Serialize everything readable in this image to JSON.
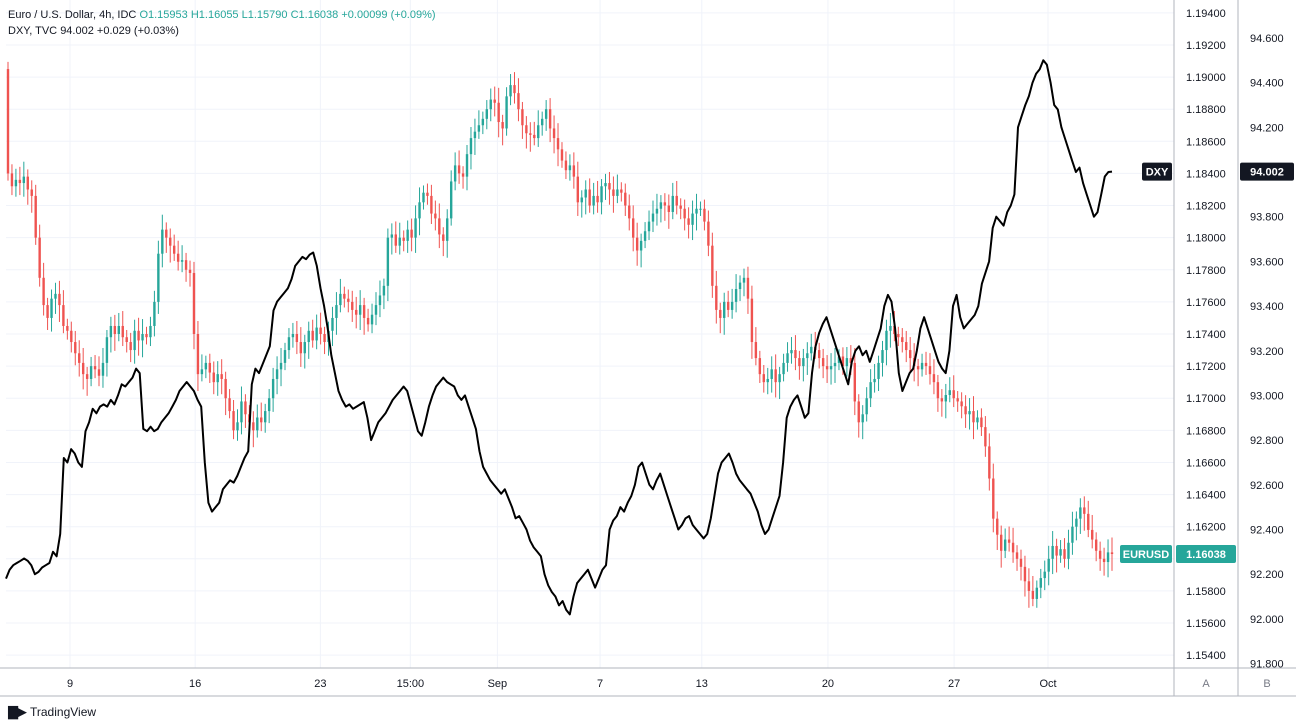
{
  "legend": {
    "eur_symbol": "Euro / U.S. Dollar, 4h, IDC",
    "eur_o": "O1.15953",
    "eur_h": "H1.16055",
    "eur_l": "L1.15790",
    "eur_c": "C1.16038",
    "eur_change": "+0.00099 (+0.09%)",
    "dxy_symbol": "DXY, TVC",
    "dxy_value": "94.002",
    "dxy_change": "+0.029 (+0.03%)"
  },
  "colors": {
    "up": "#26a69a",
    "down": "#ef5350",
    "dxy_line": "#000000",
    "grid": "#f0f3fa",
    "axis_text": "#131722"
  },
  "footer": {
    "brand": "TradingView",
    "logo_icon": "tradingview-logo-icon"
  },
  "scale_buttons": {
    "a": "A",
    "b": "B"
  },
  "chart_data": {
    "type": "line",
    "x_ticks": [
      "9",
      "16",
      "23",
      "15:00",
      "Sep",
      "7",
      "13",
      "20",
      "27",
      "Oct"
    ],
    "y_right_a_ticks": [
      "1.19400",
      "1.19200",
      "1.19000",
      "1.18800",
      "1.18600",
      "1.18400",
      "1.18200",
      "1.18000",
      "1.17800",
      "1.17600",
      "1.17400",
      "1.17200",
      "1.17000",
      "1.16800",
      "1.16600",
      "1.16400",
      "1.16200",
      "1.16000",
      "1.15800",
      "1.15600",
      "1.15400"
    ],
    "y_right_b_ticks": [
      "94.600",
      "94.400",
      "94.200",
      "94.000",
      "93.800",
      "93.600",
      "93.400",
      "93.200",
      "93.000",
      "92.800",
      "92.600",
      "92.400",
      "92.200",
      "92.000",
      "91.800"
    ],
    "eurusd_range": [
      1.1532,
      1.1948
    ],
    "dxy_range": [
      91.78,
      94.77
    ],
    "labels": {
      "dxy_tag": "DXY",
      "dxy_price": "94.002",
      "eurusd_tag": "EURUSD",
      "eurusd_price": "1.16038"
    },
    "series": [
      {
        "name": "EURUSD",
        "kind": "candlestick",
        "closes": [
          1.184,
          1.1832,
          1.1836,
          1.1834,
          1.1838,
          1.183,
          1.1826,
          1.18,
          1.1775,
          1.1758,
          1.175,
          1.1762,
          1.1765,
          1.1758,
          1.1745,
          1.1742,
          1.1735,
          1.1728,
          1.1722,
          1.1715,
          1.1712,
          1.172,
          1.1718,
          1.1714,
          1.1722,
          1.1738,
          1.1745,
          1.174,
          1.1745,
          1.1738,
          1.1735,
          1.173,
          1.1742,
          1.1736,
          1.174,
          1.1738,
          1.1745,
          1.176,
          1.179,
          1.1805,
          1.18,
          1.1795,
          1.179,
          1.1785,
          1.1786,
          1.178,
          1.1778,
          1.174,
          1.1715,
          1.1718,
          1.1722,
          1.1716,
          1.171,
          1.1715,
          1.1712,
          1.17,
          1.1692,
          1.168,
          1.1685,
          1.1698,
          1.169,
          1.1685,
          1.168,
          1.1688,
          1.1685,
          1.1692,
          1.17,
          1.1712,
          1.1718,
          1.1722,
          1.173,
          1.1738,
          1.174,
          1.1735,
          1.1728,
          1.1735,
          1.1742,
          1.1736,
          1.1744,
          1.174,
          1.1735,
          1.1742,
          1.175,
          1.1758,
          1.1765,
          1.1762,
          1.176,
          1.1755,
          1.1752,
          1.1758,
          1.175,
          1.1746,
          1.1752,
          1.1758,
          1.1764,
          1.177,
          1.18,
          1.1802,
          1.1795,
          1.18,
          1.1798,
          1.1805,
          1.18,
          1.1812,
          1.1822,
          1.1828,
          1.1826,
          1.1815,
          1.1812,
          1.1802,
          1.1798,
          1.1812,
          1.1835,
          1.1845,
          1.184,
          1.1838,
          1.1852,
          1.1862,
          1.1866,
          1.187,
          1.1874,
          1.188,
          1.1886,
          1.1884,
          1.1872,
          1.1868,
          1.1888,
          1.1895,
          1.189,
          1.188,
          1.187,
          1.1865,
          1.1864,
          1.1862,
          1.187,
          1.1874,
          1.188,
          1.1868,
          1.1862,
          1.1855,
          1.1848,
          1.1842,
          1.1845,
          1.1838,
          1.1822,
          1.1825,
          1.183,
          1.182,
          1.1826,
          1.1822,
          1.1832,
          1.1834,
          1.183,
          1.1826,
          1.183,
          1.1828,
          1.182,
          1.1812,
          1.18,
          1.1792,
          1.1798,
          1.1804,
          1.181,
          1.1815,
          1.1818,
          1.1822,
          1.182,
          1.1816,
          1.1826,
          1.182,
          1.1818,
          1.1812,
          1.1808,
          1.1815,
          1.1818,
          1.1818,
          1.181,
          1.1795,
          1.177,
          1.1755,
          1.175,
          1.176,
          1.1755,
          1.176,
          1.1768,
          1.1772,
          1.1775,
          1.1762,
          1.1735,
          1.1725,
          1.1715,
          1.171,
          1.1712,
          1.1718,
          1.171,
          1.1715,
          1.1722,
          1.1728,
          1.173,
          1.1725,
          1.172,
          1.1725,
          1.1728,
          1.1732,
          1.173,
          1.1725,
          1.172,
          1.1718,
          1.172,
          1.1722,
          1.1726,
          1.172,
          1.1725,
          1.1722,
          1.1698,
          1.1685,
          1.169,
          1.17,
          1.171,
          1.1712,
          1.1722,
          1.173,
          1.1742,
          1.1745,
          1.174,
          1.1738,
          1.1735,
          1.173,
          1.1725,
          1.172,
          1.1718,
          1.1722,
          1.172,
          1.1715,
          1.171,
          1.17,
          1.1698,
          1.1702,
          1.1705,
          1.17,
          1.1698,
          1.1695,
          1.169,
          1.1692,
          1.1685,
          1.1688,
          1.1682,
          1.167,
          1.165,
          1.1625,
          1.1615,
          1.1605,
          1.1612,
          1.161,
          1.1604,
          1.16,
          1.1595,
          1.1586,
          1.158,
          1.1575,
          1.1582,
          1.1588,
          1.1592,
          1.16,
          1.1608,
          1.1602,
          1.1606,
          1.16,
          1.161,
          1.162,
          1.1625,
          1.1632,
          1.1628,
          1.1618,
          1.1612,
          1.1605,
          1.16,
          1.1598,
          1.1604,
          1.1603
        ]
      },
      {
        "name": "DXY",
        "kind": "line",
        "values": [
          92.18,
          92.22,
          92.24,
          92.25,
          92.26,
          92.27,
          92.26,
          92.24,
          92.2,
          92.21,
          92.23,
          92.24,
          92.25,
          92.3,
          92.28,
          92.38,
          92.72,
          92.7,
          92.76,
          92.74,
          92.7,
          92.68,
          92.84,
          92.88,
          92.94,
          92.92,
          92.95,
          92.96,
          92.95,
          92.98,
          92.96,
          93.0,
          93.05,
          93.04,
          93.06,
          93.08,
          93.12,
          93.1,
          92.85,
          92.84,
          92.86,
          92.84,
          92.85,
          92.88,
          92.9,
          92.92,
          92.95,
          92.98,
          93.02,
          93.04,
          93.06,
          93.04,
          93.02,
          92.98,
          92.95,
          92.7,
          92.52,
          92.48,
          92.5,
          92.52,
          92.58,
          92.6,
          92.62,
          92.61,
          92.64,
          92.68,
          92.72,
          92.75,
          93.05,
          93.12,
          93.1,
          93.14,
          93.18,
          93.22,
          93.38,
          93.42,
          93.44,
          93.46,
          93.48,
          93.52,
          93.58,
          93.6,
          93.62,
          93.61,
          93.63,
          93.64,
          93.58,
          93.48,
          93.4,
          93.3,
          93.18,
          93.1,
          93.02,
          92.98,
          92.95,
          92.96,
          92.94,
          92.95,
          92.96,
          92.97,
          92.9,
          92.8,
          92.84,
          92.88,
          92.9,
          92.92,
          92.95,
          92.98,
          93.0,
          93.02,
          93.04,
          93.02,
          92.96,
          92.9,
          92.84,
          92.82,
          92.88,
          92.95,
          93.0,
          93.04,
          93.06,
          93.08,
          93.06,
          93.05,
          93.04,
          93.0,
          92.98,
          93.0,
          92.95,
          92.9,
          92.85,
          92.75,
          92.68,
          92.65,
          92.62,
          92.6,
          92.58,
          92.56,
          92.58,
          92.54,
          92.5,
          92.45,
          92.46,
          92.43,
          92.4,
          92.35,
          92.32,
          92.3,
          92.28,
          92.2,
          92.15,
          92.12,
          92.1,
          92.06,
          92.08,
          92.04,
          92.02,
          92.1,
          92.16,
          92.18,
          92.2,
          92.22,
          92.18,
          92.14,
          92.18,
          92.22,
          92.24,
          92.4,
          92.44,
          92.46,
          92.5,
          92.48,
          92.52,
          92.55,
          92.6,
          92.68,
          92.7,
          92.65,
          92.6,
          92.58,
          92.62,
          92.65,
          92.6,
          92.55,
          92.5,
          92.45,
          92.4,
          92.42,
          92.45,
          92.46,
          92.42,
          92.4,
          92.38,
          92.36,
          92.38,
          92.45,
          92.55,
          92.65,
          92.7,
          92.72,
          92.74,
          92.7,
          92.65,
          92.62,
          92.6,
          92.58,
          92.56,
          92.52,
          92.48,
          92.42,
          92.38,
          92.4,
          92.45,
          92.5,
          92.55,
          92.7,
          92.9,
          92.95,
          92.98,
          93.0,
          92.95,
          92.9,
          92.92,
          93.1,
          93.22,
          93.28,
          93.32,
          93.35,
          93.3,
          93.25,
          93.2,
          93.15,
          93.1,
          93.05,
          93.15,
          93.2,
          93.22,
          93.18,
          93.2,
          93.15,
          93.2,
          93.25,
          93.3,
          93.4,
          93.45,
          93.42,
          93.3,
          93.1,
          93.02,
          93.06,
          93.1,
          93.12,
          93.2,
          93.3,
          93.35,
          93.3,
          93.25,
          93.2,
          93.15,
          93.12,
          93.1,
          93.2,
          93.4,
          93.45,
          93.35,
          93.3,
          93.32,
          93.34,
          93.36,
          93.4,
          93.5,
          93.55,
          93.6,
          93.75,
          93.8,
          93.78,
          93.76,
          93.82,
          93.85,
          93.9,
          94.2,
          94.25,
          94.3,
          94.34,
          94.4,
          94.44,
          94.46,
          94.5,
          94.48,
          94.4,
          94.3,
          94.28,
          94.2,
          94.15,
          94.1,
          94.05,
          94.0,
          94.02,
          93.95,
          93.9,
          93.85,
          93.8,
          93.82,
          93.9,
          93.98,
          94.0,
          94.002
        ]
      }
    ]
  }
}
